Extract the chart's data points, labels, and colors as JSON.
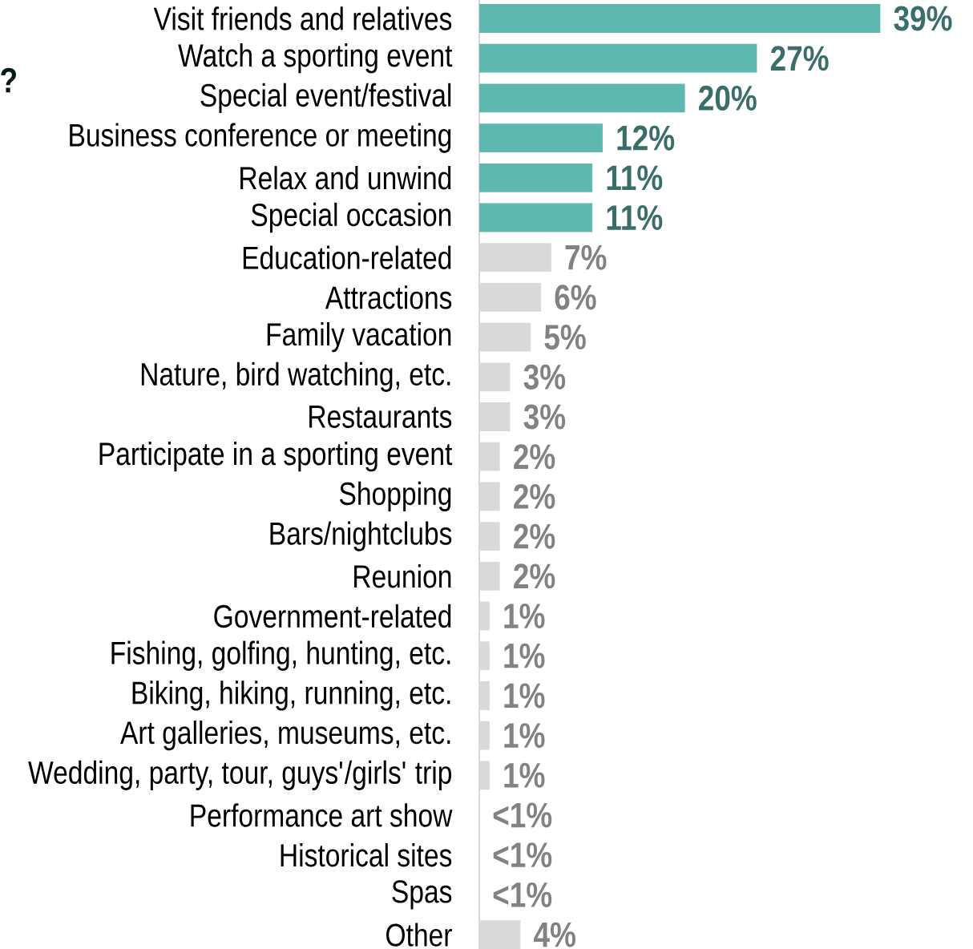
{
  "chart_data": {
    "type": "bar",
    "orientation": "horizontal",
    "categories": [
      "Visit friends and relatives",
      "Watch a sporting event",
      "Special event/festival",
      "Business conference or meeting",
      "Relax and unwind",
      "Special occasion",
      "Education-related",
      "Attractions",
      "Family vacation",
      "Nature, bird watching, etc.",
      "Restaurants",
      "Participate in a sporting event",
      "Shopping",
      "Bars/nightclubs",
      "Reunion",
      "Government-related",
      "Fishing, golfing, hunting, etc.",
      "Biking, hiking, running, etc.",
      "Art galleries, museums, etc.",
      "Wedding, party, tour, guys'/girls' trip",
      "Performance art show",
      "Historical sites",
      "Spas",
      "Other"
    ],
    "values": [
      39,
      27,
      20,
      12,
      11,
      11,
      7,
      6,
      5,
      3,
      3,
      2,
      2,
      2,
      2,
      1,
      1,
      1,
      1,
      1,
      null,
      null,
      null,
      4
    ],
    "value_labels": [
      "39%",
      "27%",
      "20%",
      "12%",
      "11%",
      "11%",
      "7%",
      "6%",
      "5%",
      "3%",
      "3%",
      "2%",
      "2%",
      "2%",
      "2%",
      "1%",
      "1%",
      "1%",
      "1%",
      "1%",
      "<1%",
      "<1%",
      "<1%",
      "4%"
    ],
    "colors": [
      "#5fb8b0",
      "#5fb8b0",
      "#5fb8b0",
      "#5fb8b0",
      "#5fb8b0",
      "#5fb8b0",
      "#d9d9d9",
      "#d9d9d9",
      "#d9d9d9",
      "#d9d9d9",
      "#d9d9d9",
      "#d9d9d9",
      "#d9d9d9",
      "#d9d9d9",
      "#d9d9d9",
      "#d9d9d9",
      "#d9d9d9",
      "#d9d9d9",
      "#d9d9d9",
      "#d9d9d9",
      "#d9d9d9",
      "#d9d9d9",
      "#d9d9d9",
      "#d9d9d9"
    ],
    "tick_labels": "y",
    "annotations": [
      "?"
    ]
  }
}
